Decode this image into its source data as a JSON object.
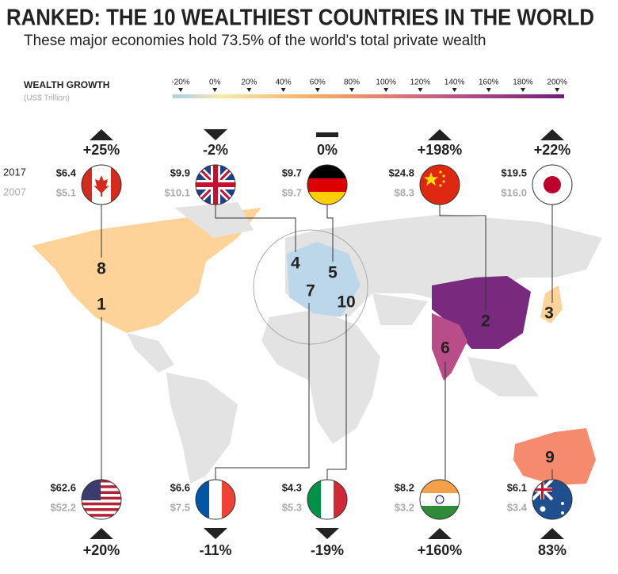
{
  "title": "RANKED: THE 10 WEALTHIEST COUNTRIES IN THE WORLD",
  "subtitle": "These major economies hold 73.5% of the world's total private wealth",
  "legend": {
    "title": "WEALTH GROWTH",
    "unit": "(US$ Trillion)",
    "ticks": [
      "-20%",
      "0%",
      "20%",
      "40%",
      "60%",
      "80%",
      "100%",
      "120%",
      "140%",
      "160%",
      "180%",
      "200%"
    ]
  },
  "year_labels": [
    "2017",
    "2007"
  ],
  "countries": [
    {
      "rank": 8,
      "wealth_2017": "$6.4",
      "wealth_2007": "$5.1",
      "growth": "+25%"
    },
    {
      "rank": 4,
      "wealth_2017": "$9.9",
      "wealth_2007": "$10.1",
      "growth": "-2%"
    },
    {
      "rank": 5,
      "wealth_2017": "$9.7",
      "wealth_2007": "$9.7",
      "growth": "0%"
    },
    {
      "rank": 2,
      "wealth_2017": "$24.8",
      "wealth_2007": "$8.3",
      "growth": "+198%"
    },
    {
      "rank": 3,
      "wealth_2017": "$19.5",
      "wealth_2007": "$16.0",
      "growth": "+22%"
    },
    {
      "rank": 1,
      "wealth_2017": "$62.6",
      "wealth_2007": "$52.2",
      "growth": "+20%"
    },
    {
      "rank": 7,
      "wealth_2017": "$6.6",
      "wealth_2007": "$7.5",
      "growth": "-11%"
    },
    {
      "rank": 10,
      "wealth_2017": "$4.3",
      "wealth_2007": "$5.3",
      "growth": "-19%"
    },
    {
      "rank": 6,
      "wealth_2017": "$8.2",
      "wealth_2007": "$3.2",
      "growth": "+160%"
    },
    {
      "rank": 9,
      "wealth_2017": "$6.1",
      "wealth_2007": "$3.4",
      "growth": "83%"
    }
  ]
}
